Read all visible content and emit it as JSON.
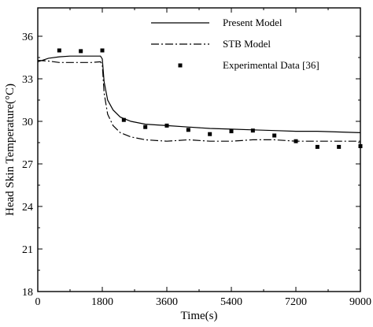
{
  "chart_data": {
    "type": "line",
    "xlabel": "Time(s)",
    "ylabel": "Head Skin Temperature(°C)",
    "xlim": [
      0,
      9000
    ],
    "ylim": [
      18,
      38
    ],
    "xticks": [
      0,
      1800,
      3600,
      5400,
      7200,
      9000
    ],
    "xtick_labels": [
      "0",
      "1800",
      "3600",
      "5400",
      "7200",
      "9000"
    ],
    "yticks": [
      18,
      21,
      24,
      27,
      30,
      33,
      36
    ],
    "ytick_labels": [
      "18",
      "21",
      "24",
      "27",
      "30",
      "33",
      "36"
    ],
    "grid": false,
    "legend_position": "top-right",
    "series": [
      {
        "name": "Present Model",
        "style": "solid",
        "x": [
          0,
          300,
          600,
          900,
          1200,
          1500,
          1750,
          1800,
          1850,
          1950,
          2100,
          2300,
          2600,
          3000,
          3600,
          4200,
          4800,
          5400,
          6000,
          6600,
          7200,
          7800,
          8400,
          9000
        ],
        "y": [
          34.2,
          34.45,
          34.55,
          34.6,
          34.6,
          34.6,
          34.6,
          34.4,
          32.8,
          31.5,
          30.8,
          30.3,
          30.0,
          29.8,
          29.7,
          29.6,
          29.5,
          29.45,
          29.4,
          29.35,
          29.3,
          29.3,
          29.25,
          29.2
        ]
      },
      {
        "name": "STB Model",
        "style": "dashdot",
        "x": [
          0,
          300,
          600,
          900,
          1200,
          1500,
          1750,
          1800,
          1850,
          1950,
          2100,
          2300,
          2600,
          3000,
          3600,
          4200,
          4800,
          5400,
          6000,
          6600,
          7200,
          7800,
          8400,
          9000
        ],
        "y": [
          34.3,
          34.25,
          34.15,
          34.15,
          34.15,
          34.15,
          34.2,
          34.0,
          32.0,
          30.5,
          29.7,
          29.2,
          28.9,
          28.7,
          28.6,
          28.7,
          28.6,
          28.6,
          28.7,
          28.7,
          28.6,
          28.6,
          28.6,
          28.6
        ]
      },
      {
        "name": "Experimental Data [36]",
        "style": "marker",
        "x": [
          600,
          1200,
          1800,
          2400,
          3000,
          3600,
          4200,
          4800,
          5400,
          6000,
          6600,
          7200,
          7800,
          8400,
          9000
        ],
        "y": [
          35.0,
          34.95,
          35.0,
          30.1,
          29.6,
          29.7,
          29.4,
          29.1,
          29.3,
          29.35,
          29.0,
          28.6,
          28.2,
          28.2,
          28.25
        ]
      }
    ]
  }
}
